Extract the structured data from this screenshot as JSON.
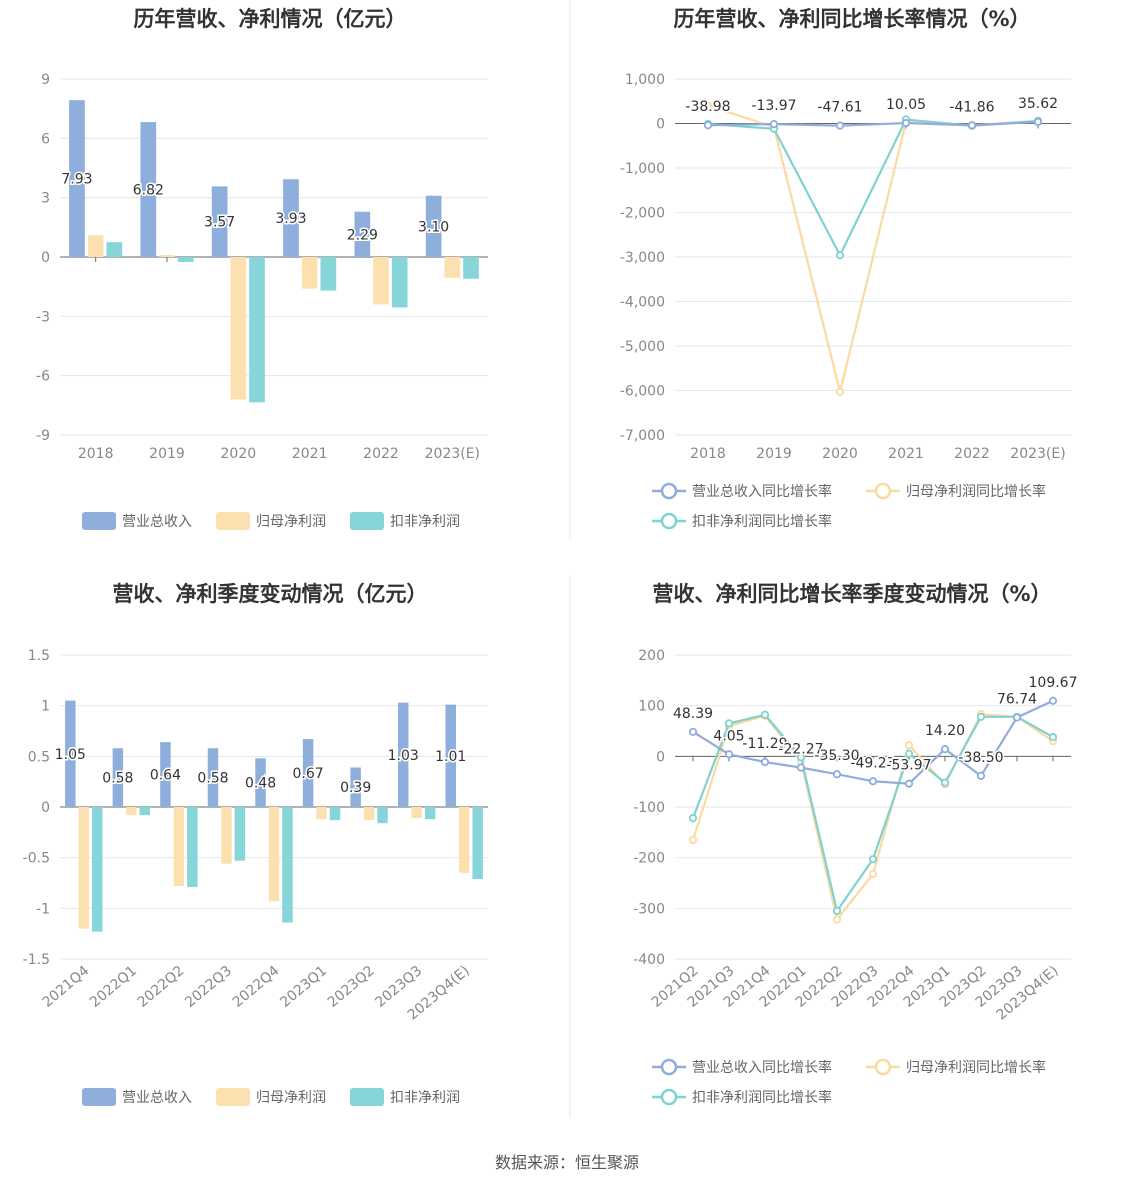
{
  "source": "数据来源：恒生聚源",
  "colors": {
    "revenue": "#8eaedc",
    "net_profit": "#fde0b0",
    "deducted": "#86d6d9",
    "revenue_line": "#91acdc",
    "net_line": "#fbd9a0",
    "deducted_line": "#7ed3d0"
  },
  "chart_data": [
    {
      "type": "bar",
      "title": "历年营收、净利情况（亿元）",
      "categories": [
        "2018",
        "2019",
        "2020",
        "2021",
        "2022",
        "2023(E)"
      ],
      "yticks": [
        "9",
        "6",
        "3",
        "0",
        "-3",
        "-6",
        "-9"
      ],
      "ylim": [
        -9,
        9
      ],
      "series": [
        {
          "name": "营业总收入",
          "values": [
            7.93,
            6.82,
            3.57,
            3.93,
            2.29,
            3.1
          ],
          "labels": [
            "7.93",
            "6.82",
            "3.57",
            "3.93",
            "2.29",
            "3.10"
          ]
        },
        {
          "name": "归母净利润",
          "values": [
            1.1,
            0.1,
            -7.2,
            -1.6,
            -2.4,
            -1.05
          ]
        },
        {
          "name": "扣非净利润",
          "values": [
            0.75,
            -0.25,
            -7.35,
            -1.7,
            -2.55,
            -1.1
          ]
        }
      ],
      "legend": "bottom"
    },
    {
      "type": "line",
      "title": "历年营收、净利同比增长率情况（%）",
      "categories": [
        "2018",
        "2019",
        "2020",
        "2021",
        "2022",
        "2023(E)"
      ],
      "yticks": [
        "1,000",
        "0",
        "-1,000",
        "-2,000",
        "-3,000",
        "-4,000",
        "-5,000",
        "-6,000",
        "-7,000"
      ],
      "ylim": [
        -7000,
        1000
      ],
      "series": [
        {
          "name": "营业总收入同比增长率",
          "values": [
            -38.98,
            -13.97,
            -47.61,
            10.05,
            -41.86,
            35.62
          ],
          "labels": [
            "-38.98",
            "-13.97",
            "-47.61",
            "10.05",
            "-41.86",
            "35.62"
          ]
        },
        {
          "name": "归母净利润同比增长率",
          "values": [
            400,
            -80,
            -6030,
            30,
            -40,
            50
          ]
        },
        {
          "name": "扣非净利润同比增长率",
          "values": [
            -10,
            -120,
            -2960,
            90,
            -50,
            60
          ]
        }
      ],
      "legend": "bottom"
    },
    {
      "type": "bar",
      "title": "营收、净利季度变动情况（亿元）",
      "categories": [
        "2021Q4",
        "2022Q1",
        "2022Q2",
        "2022Q3",
        "2022Q4",
        "2023Q1",
        "2023Q2",
        "2023Q3",
        "2023Q4(E)"
      ],
      "yticks": [
        "1.5",
        "1",
        "0.5",
        "0",
        "-0.5",
        "-1",
        "-1.5"
      ],
      "ylim": [
        -1.5,
        1.5
      ],
      "series": [
        {
          "name": "营业总收入",
          "values": [
            1.05,
            0.58,
            0.64,
            0.58,
            0.48,
            0.67,
            0.39,
            1.03,
            1.01
          ],
          "labels": [
            "1.05",
            "0.58",
            "0.64",
            "0.58",
            "0.48",
            "0.67",
            "0.39",
            "1.03",
            "1.01"
          ]
        },
        {
          "name": "归母净利润",
          "values": [
            -1.2,
            -0.08,
            -0.78,
            -0.56,
            -0.93,
            -0.12,
            -0.13,
            -0.11,
            -0.65
          ]
        },
        {
          "name": "扣非净利润",
          "values": [
            -1.23,
            -0.08,
            -0.79,
            -0.53,
            -1.14,
            -0.13,
            -0.16,
            -0.12,
            -0.71
          ]
        }
      ],
      "legend": "bottom"
    },
    {
      "type": "line",
      "title": "营收、净利同比增长率季度变动情况（%）",
      "categories": [
        "2021Q2",
        "2021Q3",
        "2021Q4",
        "2022Q1",
        "2022Q2",
        "2022Q3",
        "2022Q4",
        "2023Q1",
        "2023Q2",
        "2023Q3",
        "2023Q4(E)"
      ],
      "yticks": [
        "200",
        "100",
        "0",
        "-100",
        "-200",
        "-300",
        "-400"
      ],
      "ylim": [
        -400,
        200
      ],
      "series": [
        {
          "name": "营业总收入同比增长率",
          "values": [
            48.39,
            4.05,
            -11.29,
            -22.27,
            -35.3,
            -49.23,
            -53.97,
            14.2,
            -38.5,
            76.74,
            109.67
          ],
          "labels": [
            "48.39",
            "4.05",
            "-11.29",
            "-22.27",
            "-35.30",
            "-49.23",
            "-53.97",
            "14.20",
            "-38.50",
            "76.74",
            "109.67"
          ]
        },
        {
          "name": "归母净利润同比增长率",
          "values": [
            -165,
            60,
            80,
            -10,
            -322,
            -232,
            22,
            -55,
            83,
            78,
            30
          ]
        },
        {
          "name": "扣非净利润同比增长率",
          "values": [
            -122,
            65,
            82,
            -2,
            -305,
            -203,
            5,
            -52,
            78,
            78,
            38
          ]
        }
      ],
      "legend": "bottom"
    }
  ]
}
